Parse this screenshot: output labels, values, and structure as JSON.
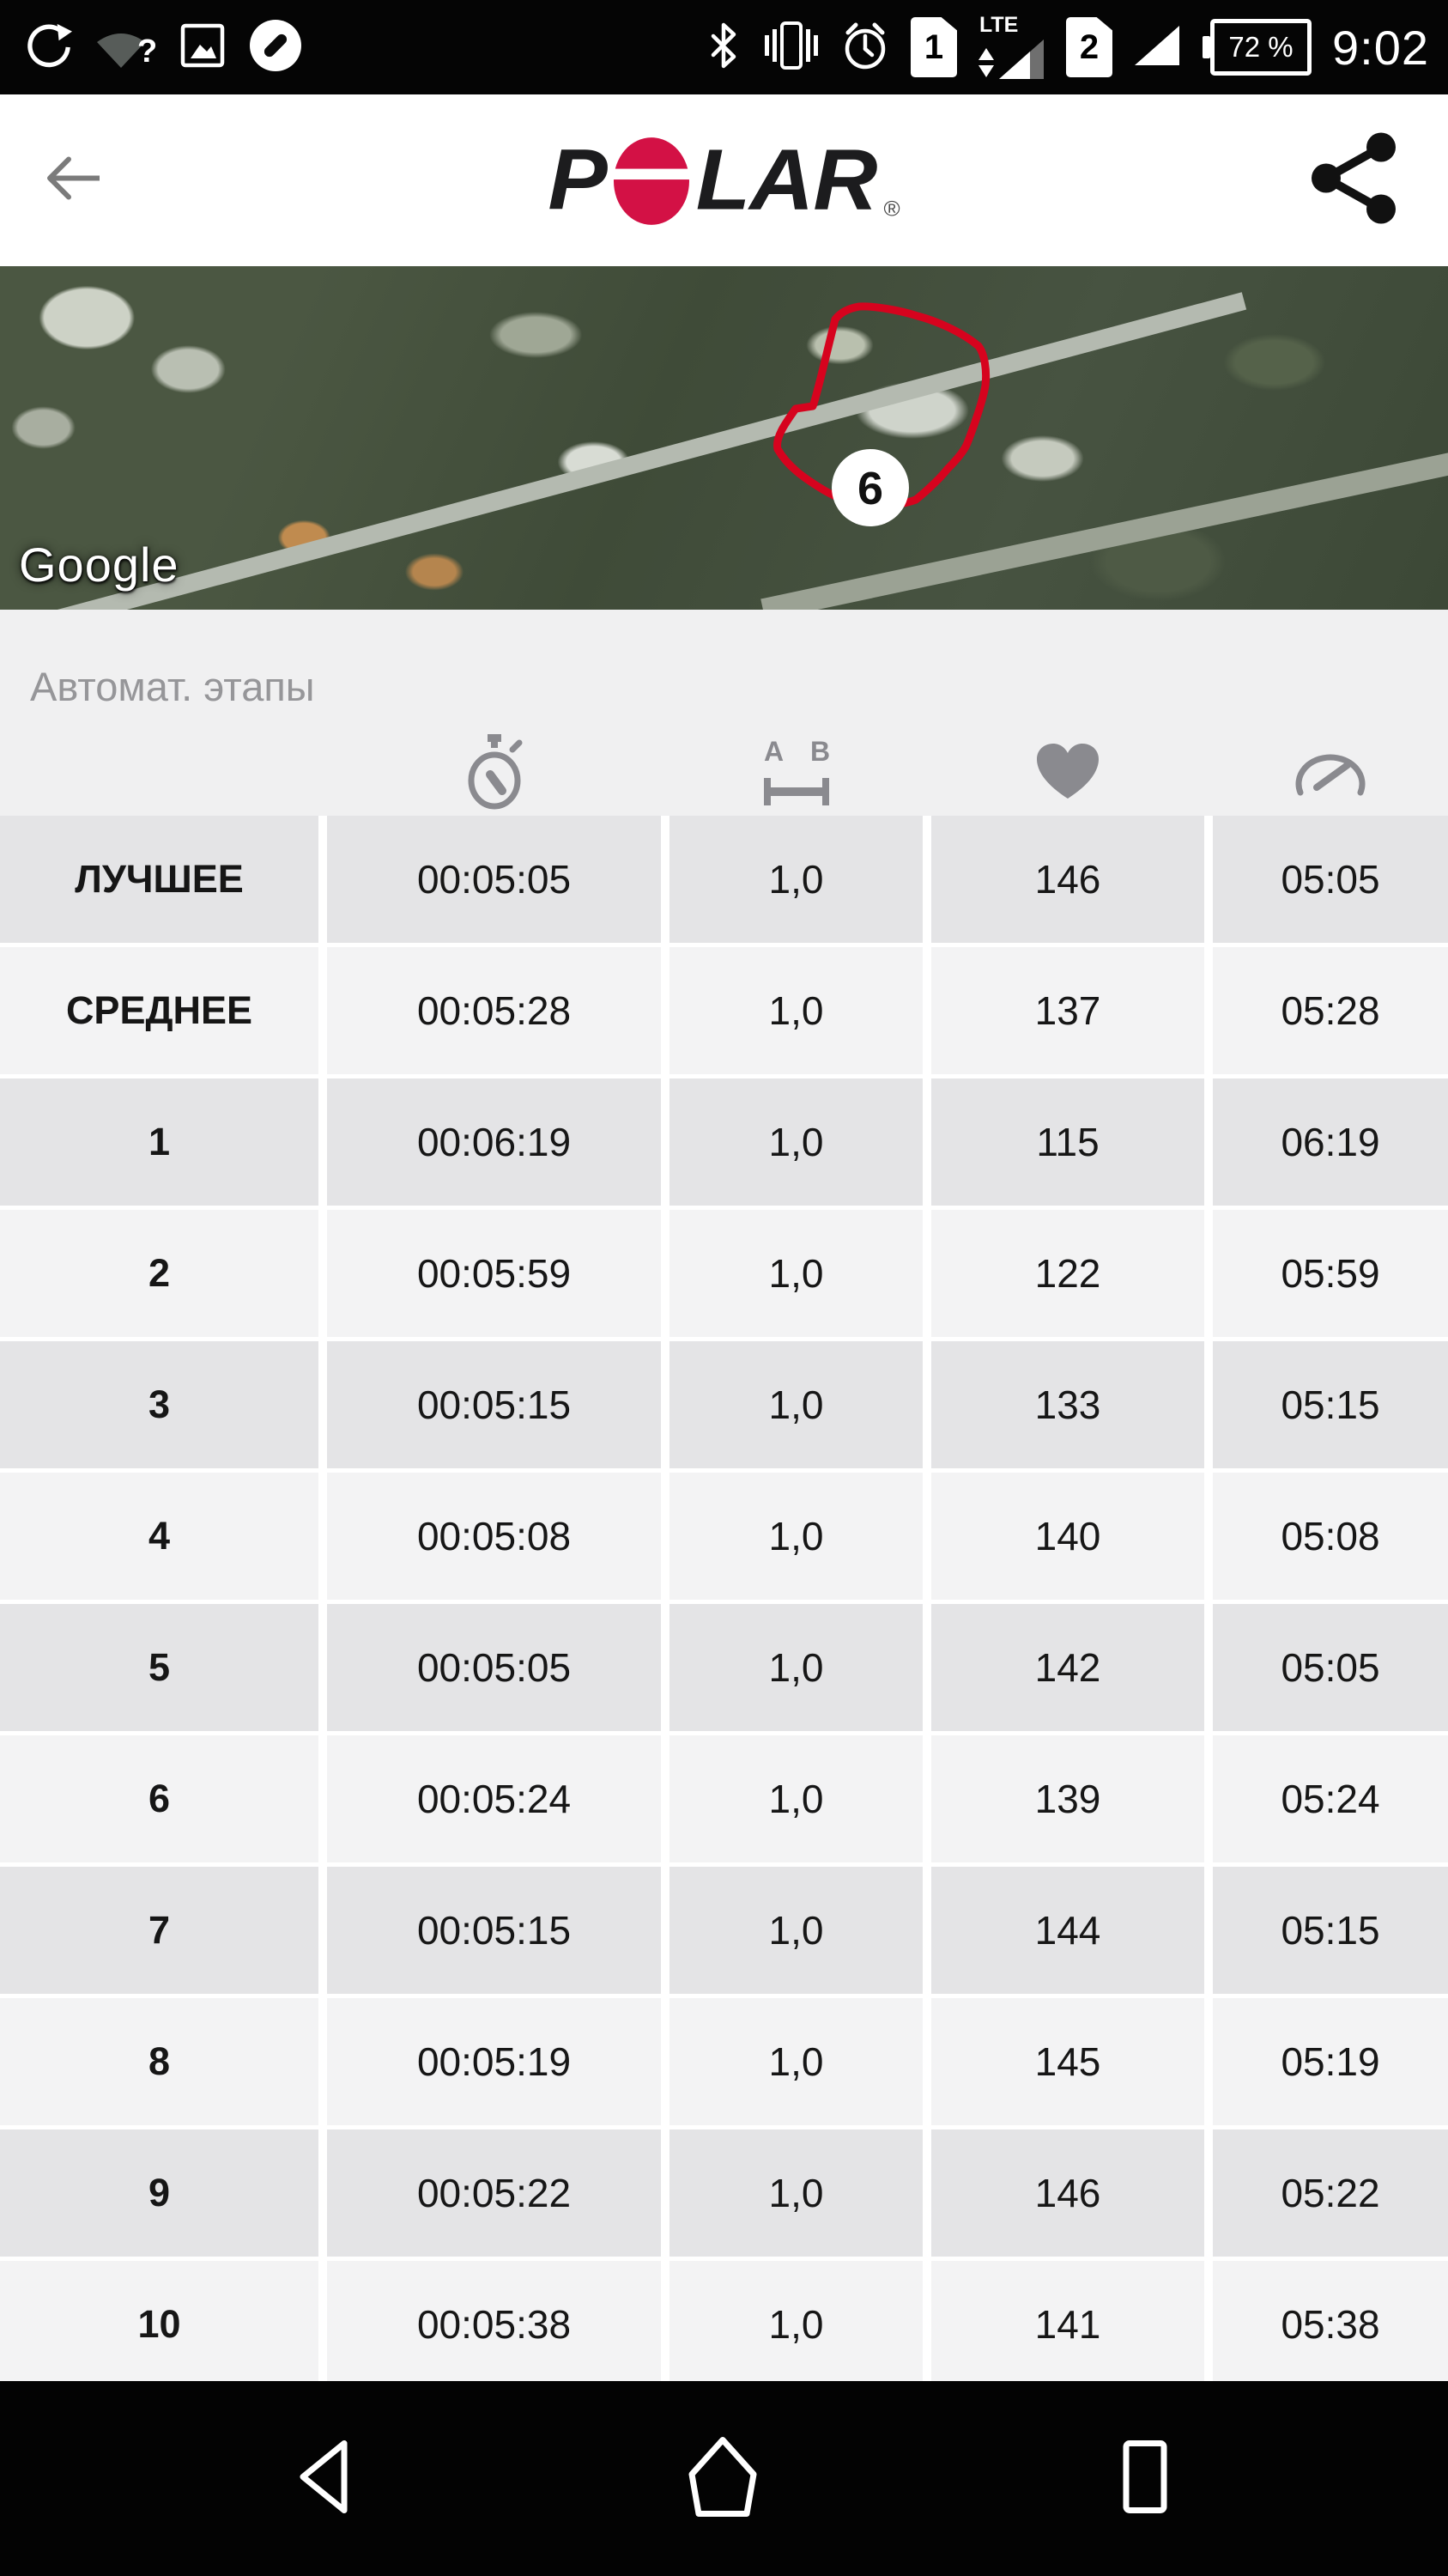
{
  "colors": {
    "brand_red": "#d31145",
    "route_red": "#d6031e"
  },
  "status_bar": {
    "time": "9:02",
    "battery_percent": "72 %",
    "sim1_number": "1",
    "sim1_network": "LTE",
    "sim2_number": "2"
  },
  "app_bar": {
    "logo_p": "P",
    "logo_lar": "LAR",
    "logo_registered": "®"
  },
  "map": {
    "watermark": "Google",
    "lap_marker": "6"
  },
  "laps": {
    "title": "Автомат. этапы",
    "icon_ab": {
      "a": "A",
      "b": "B"
    },
    "column_icons": [
      "duration",
      "distance",
      "heart-rate",
      "pace"
    ],
    "rows": [
      {
        "label": "ЛУЧШЕЕ",
        "duration": "00:05:05",
        "distance": "1,0",
        "heart_rate": "146",
        "pace": "05:05"
      },
      {
        "label": "СРЕДНЕЕ",
        "duration": "00:05:28",
        "distance": "1,0",
        "heart_rate": "137",
        "pace": "05:28"
      },
      {
        "label": "1",
        "duration": "00:06:19",
        "distance": "1,0",
        "heart_rate": "115",
        "pace": "06:19"
      },
      {
        "label": "2",
        "duration": "00:05:59",
        "distance": "1,0",
        "heart_rate": "122",
        "pace": "05:59"
      },
      {
        "label": "3",
        "duration": "00:05:15",
        "distance": "1,0",
        "heart_rate": "133",
        "pace": "05:15"
      },
      {
        "label": "4",
        "duration": "00:05:08",
        "distance": "1,0",
        "heart_rate": "140",
        "pace": "05:08"
      },
      {
        "label": "5",
        "duration": "00:05:05",
        "distance": "1,0",
        "heart_rate": "142",
        "pace": "05:05"
      },
      {
        "label": "6",
        "duration": "00:05:24",
        "distance": "1,0",
        "heart_rate": "139",
        "pace": "05:24"
      },
      {
        "label": "7",
        "duration": "00:05:15",
        "distance": "1,0",
        "heart_rate": "144",
        "pace": "05:15"
      },
      {
        "label": "8",
        "duration": "00:05:19",
        "distance": "1,0",
        "heart_rate": "145",
        "pace": "05:19"
      },
      {
        "label": "9",
        "duration": "00:05:22",
        "distance": "1,0",
        "heart_rate": "146",
        "pace": "05:22"
      },
      {
        "label": "10",
        "duration": "00:05:38",
        "distance": "1,0",
        "heart_rate": "141",
        "pace": "05:38"
      }
    ]
  }
}
